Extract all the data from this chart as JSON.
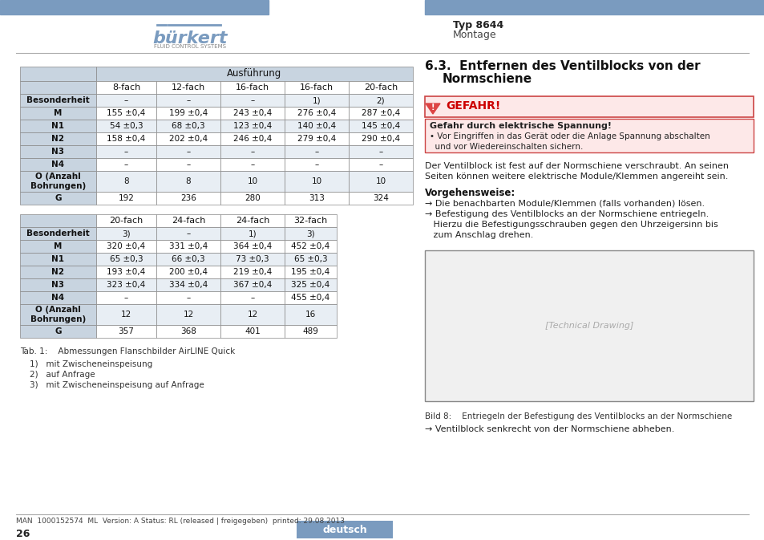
{
  "page_bg": "#ffffff",
  "header_bar_color": "#7a9bbf",
  "burkert_text": "bürkert",
  "burkert_sub": "FLUID CONTROL SYSTEMS",
  "burkert_color": "#7a9bbf",
  "typ_text": "Typ 8644",
  "montage_text": "Montage",
  "divider_color": "#aaaaaa",
  "gefahr_label": "GEFAHR!",
  "warning_title": "Gefahr durch elektrische Spannung!",
  "warning_text": "• Vor Eingriffen in das Gerät oder die Anlage Spannung abschalten\n  und vor Wiedereinschalten sichern.",
  "desc_text1": "Der Ventilblock ist fest auf der Normschiene verschraubt. An seinen\nSeiten können weitere elektrische Module/Klemmen angereiht sein.",
  "vorgehen_title": "Vorgehensweise:",
  "arrow_steps": [
    "→ Die benachbarten Module/Klemmen (falls vorhanden) lösen.",
    "→ Befestigung des Ventilblocks an der Normschiene entriegeln.\n   Hierzu die Befestigungsschrauben gegen den Uhrzeigersinn bis\n   zum Anschlag drehen."
  ],
  "bild_caption": "Bild 8:    Entriegeln der Befestigung des Ventilblocks an der Normschiene",
  "final_arrow": "→ Ventilblock senkrecht von der Normschiene abheben.",
  "table1_rows": [
    [
      "Besonderheit",
      "–",
      "–",
      "–",
      "1)",
      "2)"
    ],
    [
      "M",
      "155 ±0,4",
      "199 ±0,4",
      "243 ±0,4",
      "276 ±0,4",
      "287 ±0,4"
    ],
    [
      "N1",
      "54 ±0,3",
      "68 ±0,3",
      "123 ±0,4",
      "140 ±0,4",
      "145 ±0,4"
    ],
    [
      "N2",
      "158 ±0,4",
      "202 ±0,4",
      "246 ±0,4",
      "279 ±0,4",
      "290 ±0,4"
    ],
    [
      "N3",
      "–",
      "–",
      "–",
      "–",
      "–"
    ],
    [
      "N4",
      "–",
      "–",
      "–",
      "–",
      "–"
    ],
    [
      "O (Anzahl\nBohrungen)",
      "8",
      "8",
      "10",
      "10",
      "10"
    ],
    [
      "G",
      "192",
      "236",
      "280",
      "313",
      "324"
    ]
  ],
  "table2_cols": [
    "",
    "20-fach",
    "24-fach",
    "24-fach",
    "32-fach"
  ],
  "table2_rows": [
    [
      "Besonderheit",
      "3)",
      "–",
      "1)",
      "3)"
    ],
    [
      "M",
      "320 ±0,4",
      "331 ±0,4",
      "364 ±0,4",
      "452 ±0,4"
    ],
    [
      "N1",
      "65 ±0,3",
      "66 ±0,3",
      "73 ±0,3",
      "65 ±0,3"
    ],
    [
      "N2",
      "193 ±0,4",
      "200 ±0,4",
      "219 ±0,4",
      "195 ±0,4"
    ],
    [
      "N3",
      "323 ±0,4",
      "334 ±0,4",
      "367 ±0,4",
      "325 ±0,4"
    ],
    [
      "N4",
      "–",
      "–",
      "–",
      "455 ±0,4"
    ],
    [
      "O (Anzahl\nBohrungen)",
      "12",
      "12",
      "12",
      "16"
    ],
    [
      "G",
      "357",
      "368",
      "401",
      "489"
    ]
  ],
  "tab_caption": "Tab. 1:    Abmessungen Flanschbilder AirLINE Quick",
  "footnotes": [
    "1)   mit Zwischeneinspeisung",
    "2)   auf Anfrage",
    "3)   mit Zwischeneinspeisung auf Anfrage"
  ],
  "footer_text": "MAN  1000152574  ML  Version: A Status: RL (released | freigegeben)  printed: 29.08.2013",
  "footer_page": "26",
  "footer_deutsch_bg": "#7a9bbf",
  "footer_deutsch_text": "deutsch",
  "table_header_bg": "#c8d4e0",
  "table_row_bg_odd": "#e8eef4",
  "table_row_bg_even": "#ffffff"
}
